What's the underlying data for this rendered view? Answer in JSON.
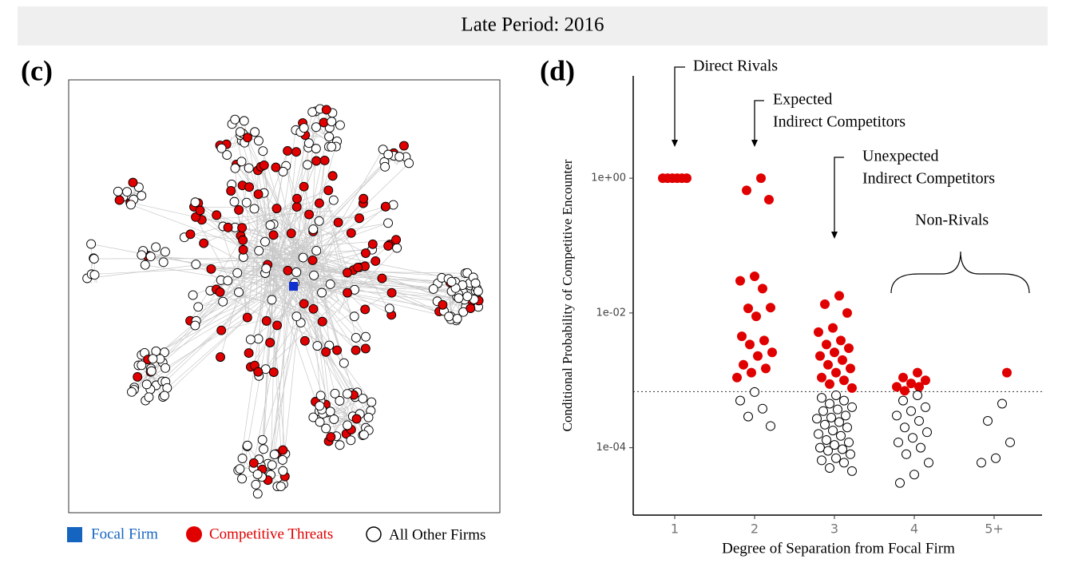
{
  "header": {
    "title": "Late Period: 2016"
  },
  "network": {
    "panel_label": "(c)",
    "legend": [
      {
        "name": "Focal Firm",
        "color": "#1565c0"
      },
      {
        "name": "Competitive Threats",
        "color": "#e00000"
      },
      {
        "name": "All Other Firms",
        "color": "#000000"
      }
    ]
  },
  "chart_data": {
    "type": "scatter",
    "panel_label": "(d)",
    "y_label": "Conditional Probability of Competitive Encounter",
    "x_label": "Degree of Separation from Focal Firm",
    "categories": [
      "1",
      "2",
      "3",
      "4",
      "5+"
    ],
    "log_y": true,
    "ylim": [
      1e-05,
      33
    ],
    "yticks": [
      {
        "value": 1,
        "label": "1e+00"
      },
      {
        "value": 0.01,
        "label": "1e-02"
      },
      {
        "value": 0.0001,
        "label": "1e-04"
      }
    ],
    "threshold": 0.00068,
    "annotations": [
      [
        "Direct Rivals"
      ],
      [
        "Expected",
        "Indirect Competitors"
      ],
      [
        "Unexpected",
        "Indirect Competitors"
      ],
      [
        "Non-Rivals"
      ]
    ],
    "series": [
      {
        "name": "Competitive Threats",
        "color": "#e00000",
        "filled": true,
        "x": [
          "1",
          "1",
          "1",
          "1",
          "1",
          "1",
          "2",
          "2",
          "2",
          "2",
          "2",
          "2",
          "2",
          "2",
          "2",
          "2",
          "2",
          "2",
          "2",
          "2",
          "2",
          "2",
          "2",
          "2",
          "3",
          "3",
          "3",
          "3",
          "3",
          "3",
          "3",
          "3",
          "3",
          "3",
          "3",
          "3",
          "3",
          "3",
          "3",
          "3",
          "3",
          "3",
          "4",
          "4",
          "4",
          "4",
          "4",
          "4",
          "4",
          "5+"
        ],
        "y": [
          1,
          1,
          1,
          1,
          1,
          1,
          1,
          0.66,
          0.48,
          0.035,
          0.03,
          0.023,
          0.0117,
          0.012,
          0.0089,
          0.0045,
          0.0039,
          0.0034,
          0.0026,
          0.0023,
          0.0017,
          0.0015,
          0.0013,
          0.0011,
          0.018,
          0.0135,
          0.01,
          0.006,
          0.0052,
          0.0039,
          0.0034,
          0.003,
          0.0026,
          0.0023,
          0.002,
          0.0017,
          0.0015,
          0.0013,
          0.0011,
          0.001,
          0.00088,
          0.00077,
          0.0013,
          0.0011,
          0.001,
          0.0009,
          0.0008,
          0.0008,
          0.0007,
          0.0013
        ]
      },
      {
        "name": "All Other Firms",
        "color": "#000000",
        "filled": false,
        "x": [
          "2",
          "2",
          "2",
          "2",
          "2",
          "3",
          "3",
          "3",
          "3",
          "3",
          "3",
          "3",
          "3",
          "3",
          "3",
          "3",
          "3",
          "3",
          "3",
          "3",
          "3",
          "3",
          "3",
          "3",
          "3",
          "3",
          "3",
          "3",
          "3",
          "3",
          "3",
          "3",
          "3",
          "4",
          "4",
          "4",
          "4",
          "4",
          "4",
          "4",
          "4",
          "4",
          "4",
          "4",
          "4",
          "4",
          "4",
          "4",
          "5+",
          "5+",
          "5+",
          "5+",
          "5+"
        ],
        "y": [
          0.00067,
          0.0005,
          0.00038,
          0.00029,
          0.00021,
          0.0006,
          0.00055,
          0.0005,
          0.00045,
          0.0004,
          0.00037,
          0.00035,
          0.0003,
          0.00028,
          0.00027,
          0.00024,
          0.00022,
          0.0002,
          0.00018,
          0.00016,
          0.00015,
          0.00013,
          0.00012,
          0.00011,
          0.0001,
          9.5e-05,
          9e-05,
          8e-05,
          7e-05,
          6.5e-05,
          6e-05,
          5e-05,
          4.5e-05,
          0.0006,
          0.0005,
          0.0004,
          0.00035,
          0.0003,
          0.00025,
          0.0002,
          0.00017,
          0.00014,
          0.00012,
          0.0001,
          8e-05,
          6e-05,
          4e-05,
          3e-05,
          0.00045,
          0.00025,
          0.00012,
          7e-05,
          6e-05
        ]
      }
    ]
  }
}
